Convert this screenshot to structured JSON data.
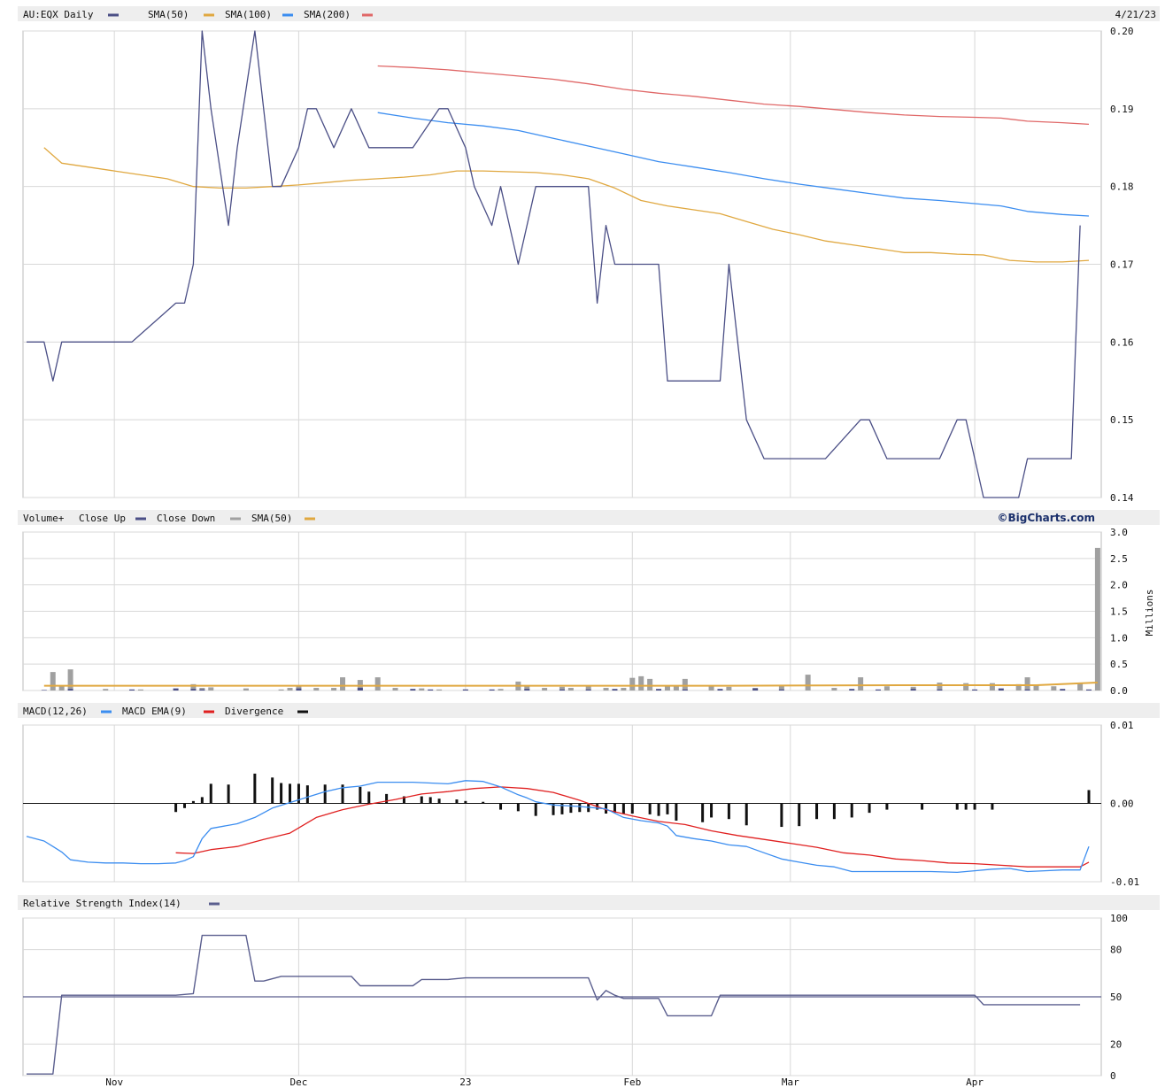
{
  "header": {
    "symbol_label": "AU:EQX Daily",
    "date_label": "4/21/23",
    "sma50_label": "SMA(50)",
    "sma100_label": "SMA(100)",
    "sma200_label": "SMA(200)"
  },
  "volume_header": {
    "title": "Volume+",
    "close_up_label": "Close Up",
    "close_down_label": "Close Down",
    "sma_label": "SMA(50)",
    "credit": "©BigCharts.com",
    "unit": "Millions"
  },
  "macd_header": {
    "macd_label": "MACD(12,26)",
    "ema_label": "MACD EMA(9)",
    "divergence_label": "Divergence"
  },
  "rsi_header": {
    "label": "Relative Strength Index(14)"
  },
  "colors": {
    "price": "#4b4f86",
    "sma50": "#e0a840",
    "sma100": "#3b8df0",
    "sma200": "#e06868",
    "vol_up": "#4b4f86",
    "vol_down": "#a0a0a0",
    "macd": "#3b8df0",
    "macd_ema": "#e02020",
    "divergence": "#111111",
    "rsi": "#5a5e8e",
    "grid": "#d8d8d8",
    "header_bg": "#eeeeee"
  },
  "chart_data": [
    {
      "type": "line",
      "title": "AU:EQX Daily",
      "x_ticks": [
        "Nov",
        "Dec",
        "23",
        "Feb",
        "Mar",
        "Apr"
      ],
      "x_tick_index": [
        10,
        31,
        50,
        69,
        87,
        108
      ],
      "y_ticks": [
        "0.20",
        "0.19",
        "0.18",
        "0.17",
        "0.16",
        "0.15",
        "0.14"
      ],
      "ylim": [
        0.14,
        0.2
      ],
      "grid": true,
      "series": [
        {
          "name": "AU:EQX Daily",
          "color": "#4b4f86",
          "x": [
            0,
            2,
            3,
            4,
            12,
            17,
            18,
            19,
            20,
            21,
            23,
            24,
            26,
            28,
            29,
            31,
            32,
            33,
            35,
            37,
            39,
            41,
            44,
            47,
            48,
            50,
            51,
            53,
            54,
            56,
            58,
            60,
            61,
            64,
            65,
            66,
            67,
            68,
            69,
            72,
            73,
            76,
            77,
            79,
            80,
            82,
            84,
            85,
            87,
            88,
            90,
            91,
            95,
            96,
            98,
            99,
            100,
            103,
            104,
            106,
            107,
            109,
            113,
            114,
            115,
            116,
            117,
            119,
            120
          ],
          "y": [
            0.16,
            0.16,
            0.155,
            0.16,
            0.16,
            0.165,
            0.165,
            0.17,
            0.2,
            0.19,
            0.175,
            0.185,
            0.2,
            0.18,
            0.18,
            0.185,
            0.19,
            0.19,
            0.185,
            0.19,
            0.185,
            0.185,
            0.185,
            0.19,
            0.19,
            0.185,
            0.18,
            0.175,
            0.18,
            0.17,
            0.18,
            0.18,
            0.18,
            0.18,
            0.165,
            0.175,
            0.17,
            0.17,
            0.17,
            0.17,
            0.155,
            0.155,
            0.155,
            0.155,
            0.17,
            0.15,
            0.145,
            0.145,
            0.145,
            0.145,
            0.145,
            0.145,
            0.15,
            0.15,
            0.145,
            0.145,
            0.145,
            0.145,
            0.145,
            0.15,
            0.15,
            0.14,
            0.14,
            0.145,
            0.145,
            0.145,
            0.145,
            0.145,
            0.175
          ]
        },
        {
          "name": "SMA(50)",
          "color": "#e0a840",
          "x": [
            2,
            4,
            7,
            10,
            13,
            16,
            19,
            22,
            25,
            28,
            31,
            34,
            37,
            40,
            43,
            46,
            49,
            52,
            55,
            58,
            61,
            64,
            67,
            70,
            73,
            76,
            79,
            82,
            85,
            88,
            91,
            94,
            97,
            100,
            103,
            106,
            109,
            112,
            115,
            118,
            121
          ],
          "y": [
            0.185,
            0.183,
            0.1825,
            0.182,
            0.1815,
            0.181,
            0.18,
            0.1798,
            0.1798,
            0.18,
            0.1802,
            0.1805,
            0.1808,
            0.181,
            0.1812,
            0.1815,
            0.182,
            0.182,
            0.1819,
            0.1818,
            0.1815,
            0.181,
            0.1798,
            0.1782,
            0.1775,
            0.177,
            0.1765,
            0.1755,
            0.1745,
            0.1738,
            0.173,
            0.1725,
            0.172,
            0.1715,
            0.1715,
            0.1713,
            0.1712,
            0.1705,
            0.1703,
            0.1703,
            0.1705
          ]
        },
        {
          "name": "SMA(100)",
          "color": "#3b8df0",
          "x": [
            40,
            44,
            48,
            52,
            56,
            60,
            64,
            68,
            72,
            76,
            80,
            84,
            88,
            92,
            96,
            100,
            104,
            108,
            111,
            114,
            118,
            121
          ],
          "y": [
            0.1895,
            0.1888,
            0.1882,
            0.1878,
            0.1872,
            0.1862,
            0.1852,
            0.1842,
            0.1832,
            0.1825,
            0.1818,
            0.181,
            0.1803,
            0.1797,
            0.1791,
            0.1785,
            0.1782,
            0.1778,
            0.1775,
            0.1768,
            0.1764,
            0.1762
          ]
        },
        {
          "name": "SMA(200)",
          "color": "#e06868",
          "x": [
            40,
            44,
            48,
            52,
            56,
            60,
            64,
            68,
            72,
            76,
            80,
            84,
            88,
            92,
            96,
            100,
            104,
            108,
            111,
            114,
            118,
            121
          ],
          "y": [
            0.1955,
            0.1953,
            0.195,
            0.1946,
            0.1942,
            0.1938,
            0.1932,
            0.1925,
            0.192,
            0.1916,
            0.1911,
            0.1906,
            0.1903,
            0.1899,
            0.1895,
            0.1892,
            0.189,
            0.1889,
            0.1888,
            0.1884,
            0.1882,
            0.188
          ]
        }
      ]
    },
    {
      "type": "bar",
      "title": "Volume+",
      "unit": "Millions",
      "y_ticks": [
        "3.0",
        "2.5",
        "2.0",
        "1.5",
        "1.0",
        "0.5",
        "0.0"
      ],
      "ylim": [
        0,
        3.0
      ],
      "grid": true,
      "bars_up": {
        "x": [
          2,
          5,
          12,
          17,
          19,
          20,
          31,
          38,
          44,
          46,
          50,
          53,
          57,
          61,
          64,
          67,
          72,
          75,
          79,
          83,
          86,
          94,
          97,
          101,
          104,
          108,
          111,
          114,
          118,
          121
        ],
        "y": [
          0.01,
          0.03,
          0.02,
          0.04,
          0.03,
          0.02,
          0.04,
          0.05,
          0.03,
          0.02,
          0.02,
          0.02,
          0.03,
          0.02,
          0.02,
          0.03,
          0.03,
          0.02,
          0.03,
          0.04,
          0.02,
          0.03,
          0.02,
          0.03,
          0.02,
          0.02,
          0.04,
          0.02,
          0.03,
          0.02
        ]
      },
      "bars_down": {
        "x": [
          3,
          4,
          5,
          9,
          13,
          19,
          20,
          21,
          25,
          29,
          30,
          31,
          33,
          35,
          36,
          38,
          40,
          42,
          45,
          47,
          50,
          54,
          56,
          57,
          59,
          61,
          62,
          64,
          66,
          68,
          69,
          70,
          71,
          73,
          74,
          75,
          78,
          80,
          83,
          86,
          89,
          92,
          95,
          98,
          101,
          104,
          107,
          110,
          113,
          114,
          115,
          117,
          120,
          122
        ],
        "y": [
          0.35,
          0.1,
          0.4,
          0.03,
          0.02,
          0.12,
          0.05,
          0.06,
          0.04,
          0.02,
          0.05,
          0.08,
          0.05,
          0.05,
          0.25,
          0.2,
          0.25,
          0.05,
          0.04,
          0.02,
          0.02,
          0.03,
          0.17,
          0.09,
          0.05,
          0.07,
          0.05,
          0.08,
          0.05,
          0.05,
          0.24,
          0.27,
          0.22,
          0.1,
          0.08,
          0.22,
          0.08,
          0.07,
          0.05,
          0.09,
          0.3,
          0.05,
          0.25,
          0.08,
          0.07,
          0.15,
          0.14,
          0.14,
          0.12,
          0.25,
          0.1,
          0.08,
          0.15,
          2.7
        ]
      },
      "sma": {
        "name": "SMA(50)",
        "x": [
          2,
          20,
          40,
          60,
          80,
          100,
          115,
          122
        ],
        "y": [
          0.09,
          0.09,
          0.09,
          0.09,
          0.09,
          0.1,
          0.1,
          0.15
        ]
      }
    },
    {
      "type": "line",
      "title": "MACD(12,26)",
      "y_ticks": [
        "0.01",
        "0.00",
        "-0.01"
      ],
      "ylim": [
        -0.01,
        0.01
      ],
      "grid": true,
      "series": [
        {
          "name": "MACD(12,26)",
          "color": "#3b8df0",
          "x": [
            0,
            2,
            3,
            4,
            5,
            7,
            9,
            11,
            13,
            15,
            17,
            18,
            19,
            20,
            21,
            24,
            26,
            28,
            30,
            32,
            34,
            36,
            38,
            40,
            44,
            46,
            48,
            50,
            52,
            54,
            56,
            57,
            58,
            60,
            63,
            66,
            68,
            70,
            72,
            73,
            74,
            76,
            78,
            80,
            82,
            84,
            86,
            88,
            90,
            92,
            94,
            96,
            98,
            100,
            103,
            106,
            108,
            110,
            112,
            114,
            116,
            118,
            120,
            121
          ],
          "y": [
            -0.0042,
            -0.0048,
            -0.0055,
            -0.0062,
            -0.0072,
            -0.0075,
            -0.0076,
            -0.0076,
            -0.0077,
            -0.0077,
            -0.0076,
            -0.0073,
            -0.0068,
            -0.0045,
            -0.0032,
            -0.0026,
            -0.0018,
            -0.0006,
            0.0001,
            0.0008,
            0.0015,
            0.002,
            0.0022,
            0.0027,
            0.0027,
            0.0026,
            0.0025,
            0.0029,
            0.0028,
            0.0021,
            0.0011,
            0.0007,
            0.0002,
            -0.0002,
            -0.0004,
            -0.0007,
            -0.0018,
            -0.0022,
            -0.0025,
            -0.0029,
            -0.0041,
            -0.0045,
            -0.0048,
            -0.0053,
            -0.0055,
            -0.0063,
            -0.0071,
            -0.0075,
            -0.0079,
            -0.0081,
            -0.0087,
            -0.0087,
            -0.0087,
            -0.0087,
            -0.0087,
            -0.0088,
            -0.0086,
            -0.0084,
            -0.0083,
            -0.0087,
            -0.0086,
            -0.0085,
            -0.0085,
            -0.0055
          ]
        },
        {
          "name": "MACD EMA(9)",
          "color": "#e02020",
          "x": [
            17,
            19,
            21,
            24,
            27,
            30,
            33,
            36,
            39,
            42,
            45,
            48,
            51,
            54,
            57,
            60,
            63,
            66,
            69,
            72,
            75,
            78,
            81,
            84,
            87,
            90,
            93,
            96,
            99,
            102,
            105,
            108,
            111,
            114,
            117,
            120,
            121
          ],
          "y": [
            -0.0063,
            -0.0064,
            -0.0059,
            -0.0055,
            -0.0046,
            -0.0038,
            -0.0018,
            -0.0008,
            -0.0001,
            0.0005,
            0.0012,
            0.0015,
            0.0019,
            0.0021,
            0.0019,
            0.0014,
            0.0004,
            -0.0008,
            -0.0016,
            -0.0023,
            -0.0027,
            -0.0035,
            -0.0041,
            -0.0046,
            -0.0051,
            -0.0056,
            -0.0063,
            -0.0066,
            -0.0071,
            -0.0073,
            -0.0076,
            -0.0077,
            -0.0079,
            -0.0081,
            -0.0081,
            -0.0081,
            -0.0075
          ]
        },
        {
          "name": "Divergence",
          "color": "#111111",
          "type": "bar",
          "x": [
            17,
            18,
            19,
            20,
            21,
            23,
            26,
            28,
            29,
            30,
            31,
            32,
            34,
            36,
            38,
            39,
            41,
            43,
            45,
            46,
            47,
            49,
            50,
            52,
            54,
            56,
            58,
            60,
            61,
            62,
            63,
            64,
            65,
            66,
            67,
            68,
            69,
            71,
            72,
            73,
            74,
            77,
            78,
            80,
            82,
            86,
            88,
            90,
            92,
            94,
            96,
            98,
            102,
            106,
            107,
            108,
            110,
            121
          ],
          "y": [
            -0.0011,
            -0.0006,
            0.0003,
            0.0008,
            0.0025,
            0.0024,
            0.0038,
            0.0033,
            0.0026,
            0.0025,
            0.0025,
            0.0023,
            0.0024,
            0.0024,
            0.0021,
            0.0015,
            0.0012,
            0.0009,
            0.0009,
            0.0008,
            0.0006,
            0.0005,
            0.0003,
            0.0002,
            -0.0008,
            -0.001,
            -0.0016,
            -0.0015,
            -0.0014,
            -0.0012,
            -0.0011,
            -0.0011,
            -0.0008,
            -0.0013,
            -0.0012,
            -0.0013,
            -0.0013,
            -0.0014,
            -0.0016,
            -0.0014,
            -0.0022,
            -0.0024,
            -0.0018,
            -0.002,
            -0.0028,
            -0.003,
            -0.0029,
            -0.002,
            -0.002,
            -0.0018,
            -0.0012,
            -0.0008,
            -0.0008,
            -0.0008,
            -0.0008,
            -0.0008,
            -0.0008,
            0.0017
          ]
        }
      ]
    },
    {
      "type": "line",
      "title": "Relative Strength Index(14)",
      "y_ticks": [
        "100",
        "80",
        "50",
        "20",
        "0"
      ],
      "ylim": [
        0,
        100
      ],
      "reference_line": 50,
      "grid": true,
      "series": [
        {
          "name": "Relative Strength Index(14)",
          "color": "#5a5e8e",
          "x": [
            0,
            3,
            4,
            17,
            19,
            20,
            25,
            26,
            27,
            29,
            37,
            38,
            44,
            45,
            48,
            50,
            53,
            60,
            62,
            64,
            65,
            66,
            67,
            68,
            69,
            72,
            73,
            75,
            78,
            79,
            107,
            108,
            109,
            113,
            117,
            120
          ],
          "y": [
            1,
            1,
            51,
            51,
            52,
            89,
            89,
            60,
            60,
            63,
            63,
            57,
            57,
            61,
            61,
            62,
            62,
            62,
            62,
            62,
            48,
            54,
            51,
            49,
            49,
            49,
            38,
            38,
            38,
            51,
            51,
            51,
            45,
            45,
            45,
            45
          ]
        }
      ]
    }
  ]
}
